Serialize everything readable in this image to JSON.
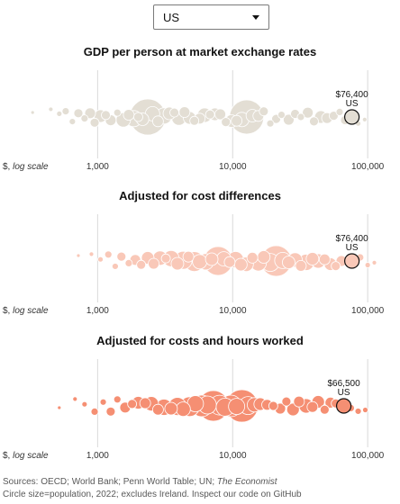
{
  "dropdown": {
    "selected": "US"
  },
  "chart_data": [
    {
      "type": "scatter",
      "title": "GDP per person at market exchange rates",
      "xscale": "log",
      "xlim": [
        300,
        120000
      ],
      "xticks": [
        {
          "value": 1000,
          "label": "1,000"
        },
        {
          "value": 10000,
          "label": "10,000"
        },
        {
          "value": 100000,
          "label": "100,000"
        }
      ],
      "xlabel_prefix": "$, ",
      "xlabel_scale": "log scale",
      "color": "#e3ded4",
      "stroke": "#ffffff",
      "highlight": {
        "name": "US",
        "value_label": "$76,400",
        "value": 76400
      },
      "bubbles": [
        {
          "v": 330,
          "r": 2
        },
        {
          "v": 450,
          "r": 2.5
        },
        {
          "v": 520,
          "r": 3
        },
        {
          "v": 580,
          "r": 4
        },
        {
          "v": 650,
          "r": 3.5
        },
        {
          "v": 720,
          "r": 5
        },
        {
          "v": 800,
          "r": 4
        },
        {
          "v": 880,
          "r": 6
        },
        {
          "v": 950,
          "r": 5
        },
        {
          "v": 1050,
          "r": 7
        },
        {
          "v": 1150,
          "r": 5
        },
        {
          "v": 1250,
          "r": 6
        },
        {
          "v": 1400,
          "r": 4
        },
        {
          "v": 1550,
          "r": 8
        },
        {
          "v": 1700,
          "r": 6
        },
        {
          "v": 1850,
          "r": 9
        },
        {
          "v": 2000,
          "r": 5
        },
        {
          "v": 2150,
          "r": 7
        },
        {
          "v": 2350,
          "r": 20
        },
        {
          "v": 2550,
          "r": 8
        },
        {
          "v": 2800,
          "r": 6
        },
        {
          "v": 3100,
          "r": 9
        },
        {
          "v": 3400,
          "r": 7
        },
        {
          "v": 3700,
          "r": 5
        },
        {
          "v": 4000,
          "r": 8
        },
        {
          "v": 4400,
          "r": 6
        },
        {
          "v": 4800,
          "r": 7
        },
        {
          "v": 5200,
          "r": 5
        },
        {
          "v": 5700,
          "r": 6
        },
        {
          "v": 6200,
          "r": 8
        },
        {
          "v": 6800,
          "r": 5
        },
        {
          "v": 7400,
          "r": 7
        },
        {
          "v": 8100,
          "r": 6
        },
        {
          "v": 8900,
          "r": 5
        },
        {
          "v": 9800,
          "r": 7
        },
        {
          "v": 10700,
          "r": 6
        },
        {
          "v": 11700,
          "r": 8
        },
        {
          "v": 12700,
          "r": 19
        },
        {
          "v": 14000,
          "r": 7
        },
        {
          "v": 15500,
          "r": 6
        },
        {
          "v": 17000,
          "r": 5
        },
        {
          "v": 19000,
          "r": 4
        },
        {
          "v": 21000,
          "r": 5
        },
        {
          "v": 23000,
          "r": 4
        },
        {
          "v": 26000,
          "r": 6
        },
        {
          "v": 29000,
          "r": 5
        },
        {
          "v": 32000,
          "r": 4
        },
        {
          "v": 36000,
          "r": 6
        },
        {
          "v": 40000,
          "r": 5
        },
        {
          "v": 45000,
          "r": 7
        },
        {
          "v": 50000,
          "r": 6
        },
        {
          "v": 56000,
          "r": 5
        },
        {
          "v": 62000,
          "r": 4
        },
        {
          "v": 68000,
          "r": 5
        },
        {
          "v": 85000,
          "r": 3
        },
        {
          "v": 95000,
          "r": 2.5
        }
      ]
    },
    {
      "type": "scatter",
      "title": "Adjusted for cost differences",
      "xscale": "log",
      "xlim": [
        300,
        120000
      ],
      "xticks": [
        {
          "value": 1000,
          "label": "1,000"
        },
        {
          "value": 10000,
          "label": "10,000"
        },
        {
          "value": 100000,
          "label": "100,000"
        }
      ],
      "xlabel_prefix": "$, ",
      "xlabel_scale": "log scale",
      "color": "#f9c8b8",
      "stroke": "#ffffff",
      "highlight": {
        "name": "US",
        "value_label": "$76,400",
        "value": 76400
      },
      "bubbles": [
        {
          "v": 720,
          "r": 2
        },
        {
          "v": 900,
          "r": 2.5
        },
        {
          "v": 1050,
          "r": 3
        },
        {
          "v": 1200,
          "r": 4
        },
        {
          "v": 1350,
          "r": 3.5
        },
        {
          "v": 1500,
          "r": 5
        },
        {
          "v": 1700,
          "r": 4
        },
        {
          "v": 1900,
          "r": 6
        },
        {
          "v": 2100,
          "r": 5
        },
        {
          "v": 2350,
          "r": 7
        },
        {
          "v": 2600,
          "r": 6
        },
        {
          "v": 2900,
          "r": 8
        },
        {
          "v": 3200,
          "r": 5
        },
        {
          "v": 3500,
          "r": 9
        },
        {
          "v": 3900,
          "r": 7
        },
        {
          "v": 4300,
          "r": 10
        },
        {
          "v": 4700,
          "r": 6
        },
        {
          "v": 5200,
          "r": 11
        },
        {
          "v": 5700,
          "r": 8
        },
        {
          "v": 6300,
          "r": 9
        },
        {
          "v": 7000,
          "r": 7
        },
        {
          "v": 7800,
          "r": 16
        },
        {
          "v": 8600,
          "r": 8
        },
        {
          "v": 9500,
          "r": 6
        },
        {
          "v": 10500,
          "r": 9
        },
        {
          "v": 11500,
          "r": 7
        },
        {
          "v": 12600,
          "r": 8
        },
        {
          "v": 14000,
          "r": 6
        },
        {
          "v": 15500,
          "r": 9
        },
        {
          "v": 17000,
          "r": 7
        },
        {
          "v": 19000,
          "r": 10
        },
        {
          "v": 21000,
          "r": 17
        },
        {
          "v": 23500,
          "r": 9
        },
        {
          "v": 26000,
          "r": 7
        },
        {
          "v": 29000,
          "r": 8
        },
        {
          "v": 32000,
          "r": 6
        },
        {
          "v": 35000,
          "r": 9
        },
        {
          "v": 39000,
          "r": 7
        },
        {
          "v": 43000,
          "r": 8
        },
        {
          "v": 48000,
          "r": 6
        },
        {
          "v": 53000,
          "r": 7
        },
        {
          "v": 58000,
          "r": 5
        },
        {
          "v": 64000,
          "r": 6
        },
        {
          "v": 88000,
          "r": 4
        },
        {
          "v": 100000,
          "r": 3
        },
        {
          "v": 112000,
          "r": 2.5
        }
      ]
    },
    {
      "type": "scatter",
      "title": "Adjusted for costs and hours worked",
      "xscale": "log",
      "xlim": [
        300,
        120000
      ],
      "xticks": [
        {
          "value": 1000,
          "label": "1,000"
        },
        {
          "value": 10000,
          "label": "10,000"
        },
        {
          "value": 100000,
          "label": "100,000"
        }
      ],
      "xlabel_prefix": "$, ",
      "xlabel_scale": "log scale",
      "color": "#f58f73",
      "stroke": "#ffffff",
      "highlight": {
        "name": "US",
        "value_label": "$66,500",
        "value": 66500
      },
      "bubbles": [
        {
          "v": 520,
          "r": 2
        },
        {
          "v": 680,
          "r": 2.5
        },
        {
          "v": 800,
          "r": 3
        },
        {
          "v": 950,
          "r": 4
        },
        {
          "v": 1100,
          "r": 3.5
        },
        {
          "v": 1250,
          "r": 5
        },
        {
          "v": 1400,
          "r": 4
        },
        {
          "v": 1600,
          "r": 6
        },
        {
          "v": 1800,
          "r": 5
        },
        {
          "v": 2000,
          "r": 7
        },
        {
          "v": 2250,
          "r": 6
        },
        {
          "v": 2500,
          "r": 8
        },
        {
          "v": 2800,
          "r": 6
        },
        {
          "v": 3100,
          "r": 9
        },
        {
          "v": 3500,
          "r": 7
        },
        {
          "v": 3900,
          "r": 10
        },
        {
          "v": 4300,
          "r": 8
        },
        {
          "v": 4800,
          "r": 11
        },
        {
          "v": 5300,
          "r": 9
        },
        {
          "v": 5900,
          "r": 12
        },
        {
          "v": 6500,
          "r": 10
        },
        {
          "v": 7200,
          "r": 17
        },
        {
          "v": 8000,
          "r": 11
        },
        {
          "v": 8800,
          "r": 10
        },
        {
          "v": 9700,
          "r": 12
        },
        {
          "v": 10700,
          "r": 9
        },
        {
          "v": 11700,
          "r": 18
        },
        {
          "v": 13000,
          "r": 10
        },
        {
          "v": 14500,
          "r": 8
        },
        {
          "v": 16000,
          "r": 7
        },
        {
          "v": 18000,
          "r": 6
        },
        {
          "v": 20000,
          "r": 5
        },
        {
          "v": 22500,
          "r": 6
        },
        {
          "v": 25000,
          "r": 5
        },
        {
          "v": 28000,
          "r": 7
        },
        {
          "v": 31000,
          "r": 6
        },
        {
          "v": 35000,
          "r": 8
        },
        {
          "v": 39000,
          "r": 6
        },
        {
          "v": 43000,
          "r": 7
        },
        {
          "v": 48000,
          "r": 5
        },
        {
          "v": 53000,
          "r": 6
        },
        {
          "v": 58000,
          "r": 5
        },
        {
          "v": 75000,
          "r": 4
        },
        {
          "v": 85000,
          "r": 3.5
        },
        {
          "v": 96000,
          "r": 3
        }
      ]
    }
  ],
  "footer": {
    "sources_prefix": "Sources: OECD; World Bank; Penn World Table; UN; ",
    "sources_italic": "The Economist",
    "note": "Circle size=population, 2022; excludes Ireland. Inspect our code on GitHub"
  }
}
